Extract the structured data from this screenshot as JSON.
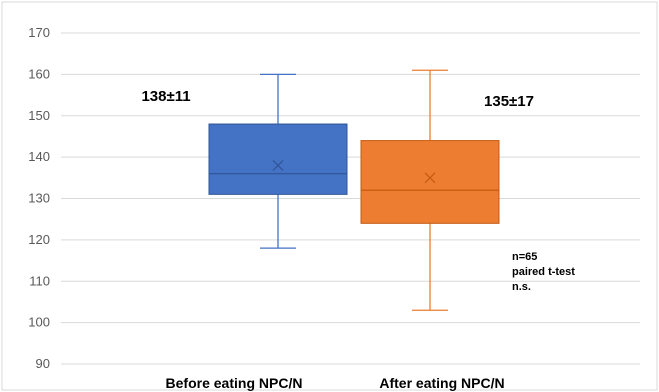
{
  "chart_data": {
    "type": "box",
    "categories": [
      "Before eating NPC/N",
      "After eating NPC/N"
    ],
    "ylim": [
      90,
      170
    ],
    "yticks": [
      90,
      100,
      110,
      120,
      130,
      140,
      150,
      160,
      170
    ],
    "grid": true,
    "boxes": [
      {
        "category": "Before eating NPC/N",
        "min": 118,
        "q1": 131,
        "median": 136,
        "q3": 148,
        "max": 160,
        "mean": 138,
        "color": "#4472C4",
        "label": "138±11"
      },
      {
        "category": "After eating NPC/N",
        "min": 103,
        "q1": 124,
        "median": 132,
        "q3": 144,
        "max": 161,
        "mean": 135,
        "color": "#ED7D31",
        "label": "135±17"
      }
    ],
    "annotation": [
      "n=65",
      "paired t-test",
      "n.s."
    ]
  }
}
